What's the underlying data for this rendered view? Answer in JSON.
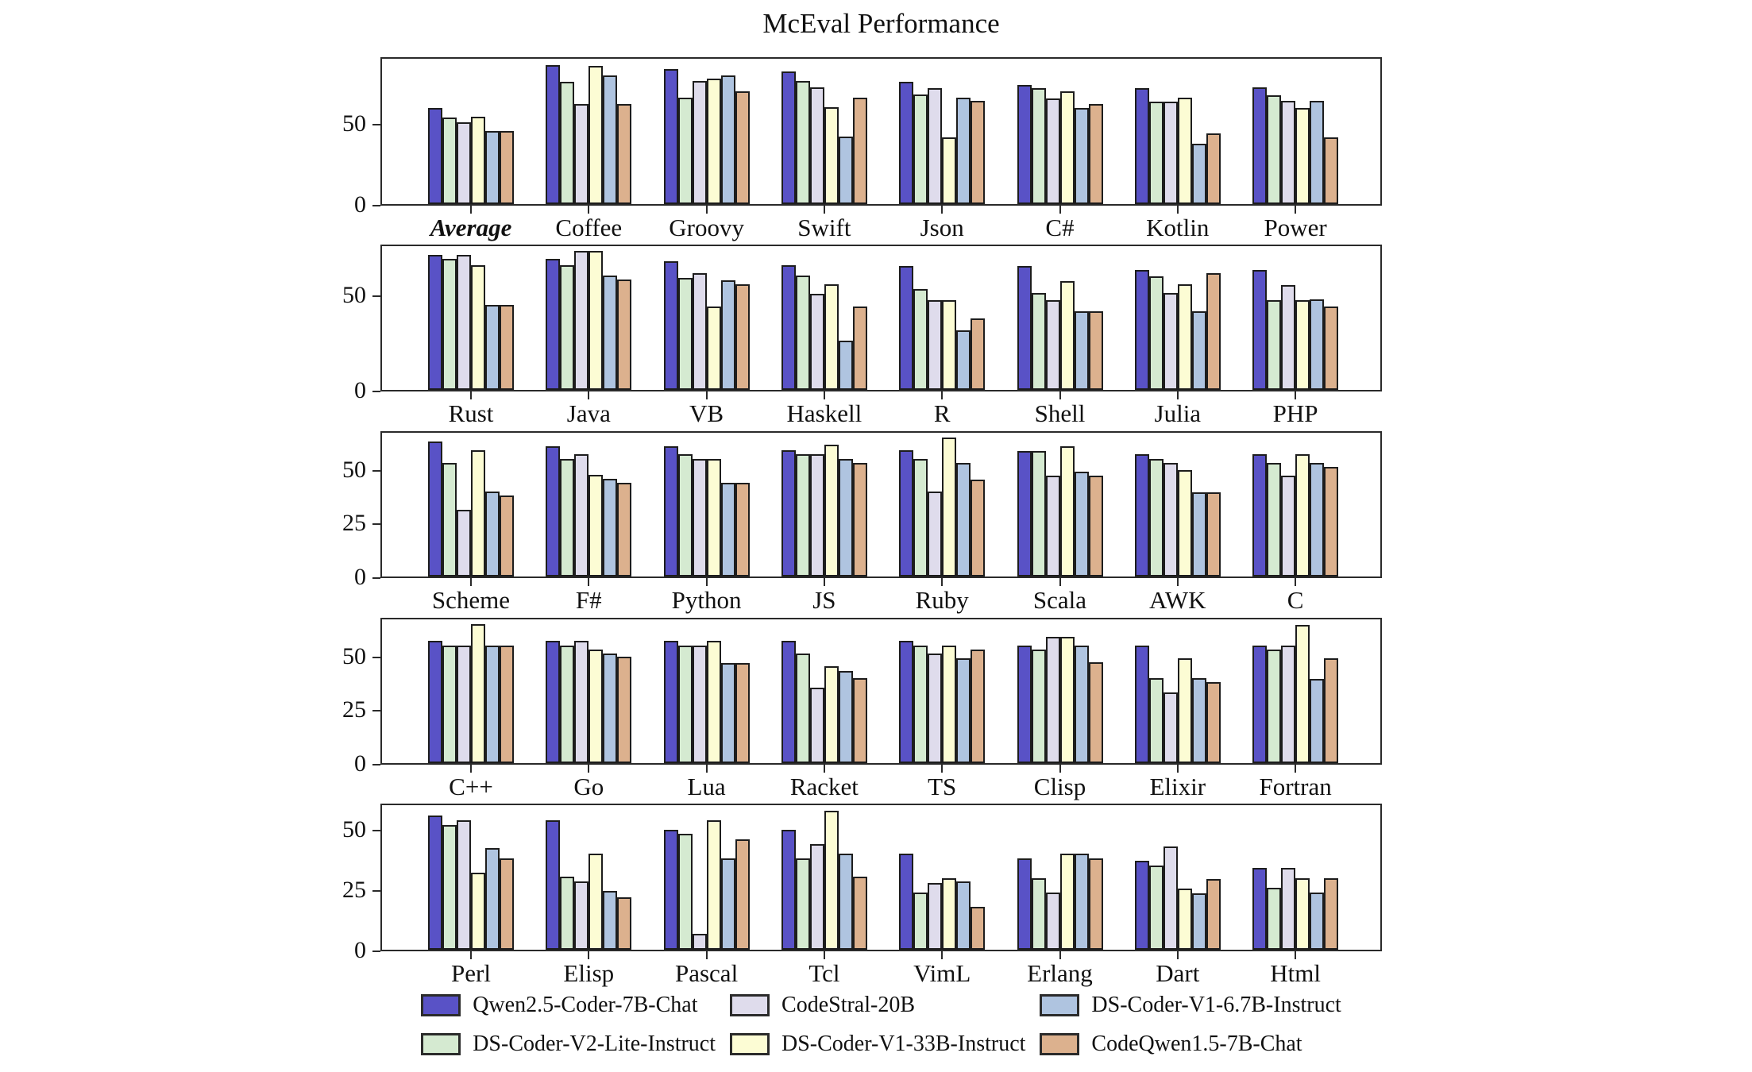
{
  "title": "McEval Performance",
  "chart_data": {
    "type": "bar",
    "title": "McEval Performance",
    "grid": false,
    "legend_position": "bottom",
    "bar_edge_color": "#1d1d1d",
    "series": [
      {
        "name": "Qwen2.5-Coder-7B-Chat",
        "color": "#5952C6",
        "key": "qwen25-coder-7b-chat"
      },
      {
        "name": "DS-Coder-V2-Lite-Instruct",
        "color": "#D5EAD1",
        "key": "ds-coder-v2-lite-instruct"
      },
      {
        "name": "CodeStral-20B",
        "color": "#DFDCEC",
        "key": "codestral-20b"
      },
      {
        "name": "DS-Coder-V1-33B-Instruct",
        "color": "#FCFCD4",
        "key": "ds-coder-v1-33b-instruct"
      },
      {
        "name": "DS-Coder-V1-6.7B-Instruct",
        "color": "#AFC4E0",
        "key": "ds-coder-v1-6.7b-instruct"
      },
      {
        "name": "CodeQwen1.5-7B-Chat",
        "color": "#DCB18E",
        "key": "codeqwen1.5-7b-chat"
      }
    ],
    "subplots": [
      {
        "yticks": [
          0,
          50
        ],
        "ylim": [
          0,
          92
        ],
        "groups": [
          {
            "label": "Average",
            "emphasis": true,
            "values": [
              60,
              54,
              51,
              54.5,
              46,
              46
            ]
          },
          {
            "label": "Coffee",
            "emphasis": false,
            "values": [
              87,
              76.5,
              62.5,
              86.5,
              80.5,
              62.5
            ]
          },
          {
            "label": "Groovy",
            "emphasis": false,
            "values": [
              84.5,
              66.5,
              77,
              78.5,
              80.5,
              70.5
            ]
          },
          {
            "label": "Swift",
            "emphasis": false,
            "values": [
              83,
              77,
              73,
              60.5,
              42.5,
              66.5
            ]
          },
          {
            "label": "Json",
            "emphasis": false,
            "values": [
              76.5,
              68.5,
              72.5,
              42,
              66.5,
              64.5
            ]
          },
          {
            "label": "C#",
            "emphasis": false,
            "values": [
              74.5,
              72.5,
              66,
              70.5,
              60,
              62.5
            ]
          },
          {
            "label": "Kotlin",
            "emphasis": false,
            "values": [
              72.5,
              64,
              64,
              66.5,
              38,
              44.5
            ]
          },
          {
            "label": "Power",
            "emphasis": false,
            "values": [
              73,
              68,
              64.5,
              60,
              64.5,
              42
            ]
          }
        ]
      },
      {
        "yticks": [
          0,
          50
        ],
        "ylim": [
          0,
          77
        ],
        "groups": [
          {
            "label": "Rust",
            "emphasis": false,
            "values": [
              71.5,
              69.5,
              71.5,
              66,
              45,
              45
            ]
          },
          {
            "label": "Java",
            "emphasis": false,
            "values": [
              69.5,
              66,
              73.5,
              73.5,
              60.5,
              58.5
            ]
          },
          {
            "label": "VB",
            "emphasis": false,
            "values": [
              68,
              59.5,
              62,
              44,
              58,
              56
            ]
          },
          {
            "label": "Haskell",
            "emphasis": false,
            "values": [
              66,
              60.5,
              51,
              56,
              26,
              44
            ]
          },
          {
            "label": "R",
            "emphasis": false,
            "values": [
              65.5,
              53.5,
              47.5,
              47.5,
              31.5,
              38
            ]
          },
          {
            "label": "Shell",
            "emphasis": false,
            "values": [
              65.5,
              51.5,
              47.5,
              57.5,
              41.5,
              41.5
            ]
          },
          {
            "label": "Julia",
            "emphasis": false,
            "values": [
              63.5,
              60,
              51.5,
              56,
              41.5,
              62
            ]
          },
          {
            "label": "PHP",
            "emphasis": false,
            "values": [
              63.5,
              47.5,
              55.5,
              47.5,
              48,
              44
            ]
          }
        ]
      },
      {
        "yticks": [
          0,
          25,
          50
        ],
        "ylim": [
          0,
          68.5
        ],
        "groups": [
          {
            "label": "Scheme",
            "emphasis": false,
            "values": [
              63.5,
              53.5,
              31.5,
              59.5,
              40,
              38
            ]
          },
          {
            "label": "F#",
            "emphasis": false,
            "values": [
              61.5,
              55.5,
              57.5,
              48,
              46,
              44
            ]
          },
          {
            "label": "Python",
            "emphasis": false,
            "values": [
              61.5,
              57.5,
              55.5,
              55.5,
              44,
              44
            ]
          },
          {
            "label": "JS",
            "emphasis": false,
            "values": [
              59.5,
              57.5,
              57.5,
              62,
              55.5,
              53.5
            ]
          },
          {
            "label": "Ruby",
            "emphasis": false,
            "values": [
              59.5,
              55.5,
              40,
              65.5,
              53.5,
              45.5
            ]
          },
          {
            "label": "Scala",
            "emphasis": false,
            "values": [
              59,
              59,
              47.5,
              61.5,
              49.5,
              47.5
            ]
          },
          {
            "label": "AWK",
            "emphasis": false,
            "values": [
              57.5,
              55.5,
              53.5,
              50,
              39.5,
              39.5
            ]
          },
          {
            "label": "C",
            "emphasis": false,
            "values": [
              57.5,
              53.5,
              47.5,
              57.5,
              53.5,
              51.5
            ]
          }
        ]
      },
      {
        "yticks": [
          0,
          25,
          50
        ],
        "ylim": [
          0,
          68.5
        ],
        "groups": [
          {
            "label": "C++",
            "emphasis": false,
            "values": [
              57.5,
              55.5,
              55.5,
              65.5,
              55.5,
              55.5
            ]
          },
          {
            "label": "Go",
            "emphasis": false,
            "values": [
              57.5,
              55.5,
              57.5,
              53.5,
              51.5,
              50
            ]
          },
          {
            "label": "Lua",
            "emphasis": false,
            "values": [
              57.5,
              55.5,
              55.5,
              57.5,
              47,
              47
            ]
          },
          {
            "label": "Racket",
            "emphasis": false,
            "values": [
              57.5,
              51.5,
              35.5,
              45.5,
              43.5,
              40
            ]
          },
          {
            "label": "TS",
            "emphasis": false,
            "values": [
              57.5,
              55.5,
              51.5,
              55.5,
              49.5,
              53.5
            ]
          },
          {
            "label": "Clisp",
            "emphasis": false,
            "values": [
              55.5,
              53.5,
              59.5,
              59.5,
              55.5,
              47.5
            ]
          },
          {
            "label": "Elixir",
            "emphasis": false,
            "values": [
              55.5,
              40,
              33.5,
              49.5,
              40,
              38
            ]
          },
          {
            "label": "Fortran",
            "emphasis": false,
            "values": [
              55.5,
              53.5,
              55.5,
              65,
              39.5,
              49.5
            ]
          }
        ]
      },
      {
        "yticks": [
          0,
          25,
          50
        ],
        "ylim": [
          0,
          61
        ],
        "groups": [
          {
            "label": "Perl",
            "emphasis": false,
            "values": [
              56,
              52,
              54,
              32,
              42.5,
              38
            ]
          },
          {
            "label": "Elisp",
            "emphasis": false,
            "values": [
              54,
              30.5,
              28.5,
              40,
              24.5,
              22
            ]
          },
          {
            "label": "Pascal",
            "emphasis": false,
            "values": [
              50,
              48.5,
              6.5,
              54,
              38,
              46
            ]
          },
          {
            "label": "Tcl",
            "emphasis": false,
            "values": [
              50,
              38,
              44,
              58,
              40,
              30.5
            ]
          },
          {
            "label": "VimL",
            "emphasis": false,
            "values": [
              40,
              24,
              28,
              30,
              28.5,
              18
            ]
          },
          {
            "label": "Erlang",
            "emphasis": false,
            "values": [
              38,
              30,
              24,
              40,
              40,
              38
            ]
          },
          {
            "label": "Dart",
            "emphasis": false,
            "values": [
              37,
              35,
              43,
              25.5,
              23.5,
              29.5
            ]
          },
          {
            "label": "Html",
            "emphasis": false,
            "values": [
              34,
              26,
              34,
              30,
              24,
              30
            ]
          }
        ]
      }
    ]
  }
}
